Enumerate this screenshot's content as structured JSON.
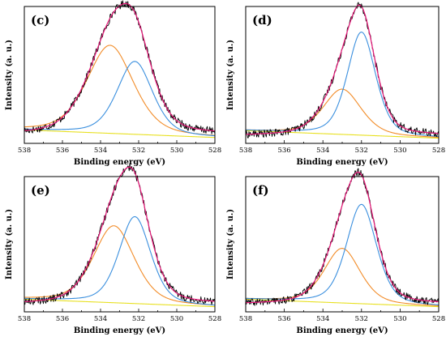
{
  "chart_data": [
    {
      "type": "line",
      "panel_label": "(c)",
      "xlabel": "Binding energy (eV)",
      "ylabel": "Intensity (a. u.)",
      "xlim": [
        538,
        528
      ],
      "xreversed": true,
      "x_ticks": [
        "538",
        "536",
        "534",
        "532",
        "530",
        "528"
      ],
      "y_ticks_shown": false,
      "background": 0.05,
      "fit_components": [
        {
          "color": "#f28c28",
          "center": 533.5,
          "height": 0.7,
          "width": 1.25
        },
        {
          "color": "#3a8fde",
          "center": 532.2,
          "height": 0.58,
          "width": 0.95
        }
      ],
      "series": [
        {
          "color": "#000000",
          "kind": "raw_data"
        },
        {
          "color": "#e8197a",
          "kind": "envelope"
        },
        {
          "color": "#f28c28",
          "kind": "component"
        },
        {
          "color": "#3a8fde",
          "kind": "component"
        },
        {
          "color": "#e8e020",
          "kind": "baseline"
        }
      ]
    },
    {
      "type": "line",
      "panel_label": "(d)",
      "xlabel": "Binding energy (eV)",
      "ylabel": "Intensity (a. u.)",
      "xlim": [
        538,
        528
      ],
      "xreversed": true,
      "x_ticks": [
        "538",
        "536",
        "534",
        "532",
        "530",
        "528"
      ],
      "y_ticks_shown": false,
      "background": 0.04,
      "fit_components": [
        {
          "color": "#f28c28",
          "center": 533.0,
          "height": 0.36,
          "width": 1.0
        },
        {
          "color": "#3a8fde",
          "center": 532.0,
          "height": 0.82,
          "width": 0.75
        }
      ],
      "series": [
        {
          "color": "#000000",
          "kind": "raw_data"
        },
        {
          "color": "#e8197a",
          "kind": "envelope"
        },
        {
          "color": "#f28c28",
          "kind": "component"
        },
        {
          "color": "#3a8fde",
          "kind": "component"
        },
        {
          "color": "#e8e020",
          "kind": "baseline"
        }
      ]
    },
    {
      "type": "line",
      "panel_label": "(e)",
      "xlabel": "Binding energy (eV)",
      "ylabel": "Intensity (a. u.)",
      "xlim": [
        538,
        528
      ],
      "xreversed": true,
      "x_ticks": [
        "538",
        "536",
        "534",
        "532",
        "530",
        "528"
      ],
      "y_ticks_shown": false,
      "background": 0.04,
      "fit_components": [
        {
          "color": "#f28c28",
          "center": 533.3,
          "height": 0.62,
          "width": 1.1
        },
        {
          "color": "#3a8fde",
          "center": 532.2,
          "height": 0.7,
          "width": 0.85
        }
      ],
      "series": [
        {
          "color": "#000000",
          "kind": "raw_data"
        },
        {
          "color": "#e8197a",
          "kind": "envelope"
        },
        {
          "color": "#f28c28",
          "kind": "component"
        },
        {
          "color": "#3a8fde",
          "kind": "component"
        },
        {
          "color": "#e8e020",
          "kind": "baseline"
        }
      ]
    },
    {
      "type": "line",
      "panel_label": "(f)",
      "xlabel": "Binding energy (eV)",
      "ylabel": "Intensity (a. u.)",
      "xlim": [
        538,
        528
      ],
      "xreversed": true,
      "x_ticks": [
        "538",
        "536",
        "534",
        "532",
        "530",
        "528"
      ],
      "y_ticks_shown": false,
      "background": 0.04,
      "fit_components": [
        {
          "color": "#f28c28",
          "center": 533.0,
          "height": 0.44,
          "width": 0.95
        },
        {
          "color": "#3a8fde",
          "center": 532.0,
          "height": 0.8,
          "width": 0.8
        }
      ],
      "series": [
        {
          "color": "#000000",
          "kind": "raw_data"
        },
        {
          "color": "#e8197a",
          "kind": "envelope"
        },
        {
          "color": "#f28c28",
          "kind": "component"
        },
        {
          "color": "#3a8fde",
          "kind": "component"
        },
        {
          "color": "#e8e020",
          "kind": "baseline"
        }
      ]
    }
  ],
  "colors": {
    "raw_data": "#000000",
    "envelope": "#e8197a",
    "component_orange": "#f28c28",
    "component_blue": "#3a8fde",
    "baseline": "#e8e020"
  }
}
